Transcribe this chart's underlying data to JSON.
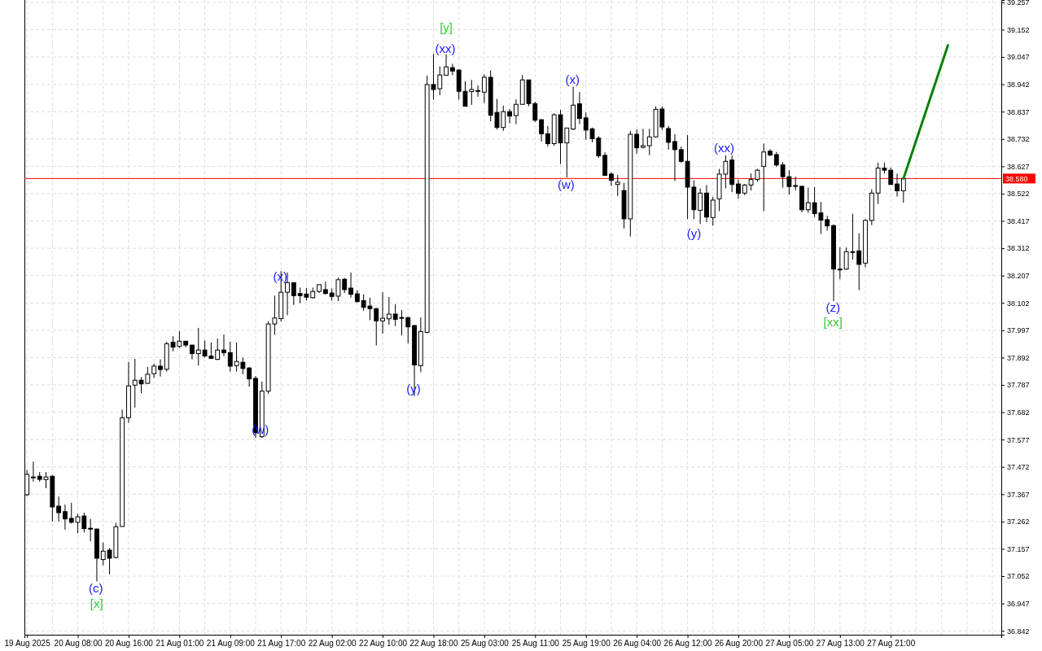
{
  "chart_data": {
    "type": "candlestick",
    "categories": [
      "19 Aug 2025",
      null,
      null,
      null,
      null,
      null,
      null,
      null,
      "20 Aug 08:00",
      null,
      null,
      null,
      null,
      null,
      null,
      null,
      "20 Aug 16:00",
      null,
      null,
      null,
      null,
      null,
      null,
      null,
      "21 Aug 01:00",
      null,
      null,
      null,
      null,
      null,
      null,
      null,
      "21 Aug 09:00",
      null,
      null,
      null,
      null,
      null,
      null,
      null,
      "21 Aug 17:00",
      null,
      null,
      null,
      null,
      null,
      null,
      null,
      "22 Aug 02:00",
      null,
      null,
      null,
      null,
      null,
      null,
      null,
      "22 Aug 10:00",
      null,
      null,
      null,
      null,
      null,
      null,
      null,
      "22 Aug 18:00",
      null,
      null,
      null,
      null,
      null,
      null,
      null,
      "25 Aug 03:00",
      null,
      null,
      null,
      null,
      null,
      null,
      null,
      "25 Aug 11:00",
      null,
      null,
      null,
      null,
      null,
      null,
      null,
      "25 Aug 19:00",
      null,
      null,
      null,
      null,
      null,
      null,
      null,
      "26 Aug 04:00",
      null,
      null,
      null,
      null,
      null,
      null,
      null,
      "26 Aug 12:00",
      null,
      null,
      null,
      null,
      null,
      null,
      null,
      "26 Aug 20:00",
      null,
      null,
      null,
      null,
      null,
      null,
      null,
      "27 Aug 05:00",
      null,
      null,
      null,
      null,
      null,
      null,
      null,
      "27 Aug 13:00",
      null,
      null,
      null,
      null,
      null,
      null,
      null,
      "27 Aug 21:00",
      null,
      null,
      null,
      null,
      null,
      null,
      null,
      null,
      null,
      null,
      null,
      null,
      null,
      null,
      null,
      null,
      null
    ],
    "ohlc": [
      [
        37.365,
        37.46,
        37.36,
        37.443
      ],
      [
        37.433,
        37.492,
        37.415,
        37.433
      ],
      [
        37.436,
        37.452,
        37.415,
        37.424
      ],
      [
        37.423,
        37.452,
        37.39,
        37.433
      ],
      [
        37.436,
        37.44,
        37.262,
        37.318
      ],
      [
        37.321,
        37.358,
        37.262,
        37.296
      ],
      [
        37.3,
        37.327,
        37.231,
        37.272
      ],
      [
        37.274,
        37.334,
        37.254,
        37.259
      ],
      [
        37.259,
        37.292,
        37.217,
        37.28
      ],
      [
        37.283,
        37.296,
        37.22,
        37.235
      ],
      [
        37.236,
        37.272,
        37.186,
        37.233
      ],
      [
        37.233,
        37.235,
        37.032,
        37.121
      ],
      [
        37.116,
        37.181,
        37.094,
        37.148
      ],
      [
        37.152,
        37.16,
        37.059,
        37.121
      ],
      [
        37.124,
        37.257,
        37.12,
        37.242
      ],
      [
        37.243,
        37.692,
        37.242,
        37.661
      ],
      [
        37.661,
        37.875,
        37.642,
        37.783
      ],
      [
        37.786,
        37.887,
        37.7,
        37.805
      ],
      [
        37.805,
        37.817,
        37.755,
        37.791
      ],
      [
        37.793,
        37.856,
        37.791,
        37.828
      ],
      [
        37.83,
        37.869,
        37.814,
        37.859
      ],
      [
        37.859,
        37.885,
        37.819,
        37.846
      ],
      [
        37.847,
        37.953,
        37.838,
        37.945
      ],
      [
        37.951,
        37.974,
        37.916,
        37.932
      ],
      [
        37.935,
        37.993,
        37.929,
        37.955
      ],
      [
        37.955,
        37.955,
        37.932,
        37.94
      ],
      [
        37.94,
        37.94,
        37.885,
        37.907
      ],
      [
        37.907,
        38.006,
        37.861,
        37.921
      ],
      [
        37.921,
        37.958,
        37.892,
        37.898
      ],
      [
        37.898,
        37.95,
        37.887,
        37.889
      ],
      [
        37.885,
        37.965,
        37.882,
        37.921
      ],
      [
        37.921,
        37.981,
        37.898,
        37.911
      ],
      [
        37.911,
        37.953,
        37.838,
        37.859
      ],
      [
        37.861,
        37.95,
        37.838,
        37.877
      ],
      [
        37.874,
        37.892,
        37.828,
        37.85
      ],
      [
        37.852,
        37.856,
        37.78,
        37.81
      ],
      [
        37.812,
        37.821,
        37.583,
        37.603
      ],
      [
        37.588,
        37.8,
        37.583,
        37.763
      ],
      [
        37.763,
        38.031,
        37.753,
        38.021
      ],
      [
        38.021,
        38.13,
        37.979,
        38.044
      ],
      [
        38.042,
        38.224,
        38.031,
        38.143
      ],
      [
        38.143,
        38.219,
        38.055,
        38.18
      ],
      [
        38.18,
        38.18,
        38.094,
        38.13
      ],
      [
        38.138,
        38.161,
        38.101,
        38.13
      ],
      [
        38.136,
        38.159,
        38.111,
        38.124
      ],
      [
        38.122,
        38.161,
        38.119,
        38.146
      ],
      [
        38.146,
        38.172,
        38.14,
        38.172
      ],
      [
        38.153,
        38.184,
        38.135,
        38.138
      ],
      [
        38.14,
        38.158,
        38.111,
        38.127
      ],
      [
        38.128,
        38.199,
        38.109,
        38.191
      ],
      [
        38.193,
        38.198,
        38.14,
        38.153
      ],
      [
        38.159,
        38.219,
        38.122,
        38.135
      ],
      [
        38.137,
        38.151,
        38.104,
        38.107
      ],
      [
        38.111,
        38.135,
        38.072,
        38.085
      ],
      [
        38.09,
        38.122,
        38.036,
        38.08
      ],
      [
        38.08,
        38.083,
        37.939,
        38.033
      ],
      [
        38.033,
        38.143,
        37.984,
        38.043
      ],
      [
        38.041,
        38.125,
        38.018,
        38.059
      ],
      [
        38.059,
        38.097,
        38.013,
        38.039
      ],
      [
        38.046,
        38.075,
        37.977,
        38.044
      ],
      [
        38.046,
        38.046,
        37.947,
        38.01
      ],
      [
        38.015,
        38.017,
        37.744,
        37.864
      ],
      [
        37.861,
        38.046,
        37.836,
        37.992
      ],
      [
        37.989,
        38.975,
        37.985,
        38.941
      ],
      [
        38.941,
        39.058,
        38.883,
        38.922
      ],
      [
        38.925,
        39.011,
        38.9,
        38.978
      ],
      [
        38.977,
        39.058,
        38.975,
        39.009
      ],
      [
        39.006,
        39.021,
        38.977,
        38.993
      ],
      [
        38.997,
        39.0,
        38.883,
        38.915
      ],
      [
        38.915,
        38.954,
        38.858,
        38.858
      ],
      [
        38.914,
        38.959,
        38.863,
        38.922
      ],
      [
        38.918,
        38.938,
        38.894,
        38.916
      ],
      [
        38.912,
        38.98,
        38.87,
        38.969
      ],
      [
        38.969,
        38.995,
        38.8,
        38.823
      ],
      [
        38.834,
        38.886,
        38.768,
        38.776
      ],
      [
        38.776,
        38.86,
        38.763,
        38.837
      ],
      [
        38.837,
        38.847,
        38.792,
        38.82
      ],
      [
        38.822,
        38.884,
        38.789,
        38.865
      ],
      [
        38.865,
        38.978,
        38.865,
        38.959
      ],
      [
        38.959,
        38.959,
        38.858,
        38.868
      ],
      [
        38.868,
        38.875,
        38.797,
        38.804
      ],
      [
        38.806,
        38.808,
        38.722,
        38.752
      ],
      [
        38.752,
        38.782,
        38.703,
        38.714
      ],
      [
        38.714,
        38.831,
        38.706,
        38.825
      ],
      [
        38.825,
        38.844,
        38.636,
        38.717
      ],
      [
        38.717,
        38.774,
        38.584,
        38.774
      ],
      [
        38.77,
        38.933,
        38.766,
        38.862
      ],
      [
        38.867,
        38.912,
        38.789,
        38.811
      ],
      [
        38.813,
        38.834,
        38.729,
        38.766
      ],
      [
        38.771,
        38.776,
        38.719,
        38.733
      ],
      [
        38.735,
        38.743,
        38.66,
        38.667
      ],
      [
        38.669,
        38.681,
        38.592,
        38.592
      ],
      [
        38.597,
        38.604,
        38.552,
        38.573
      ],
      [
        38.557,
        38.594,
        38.513,
        38.566
      ],
      [
        38.534,
        38.563,
        38.388,
        38.425
      ],
      [
        38.425,
        38.763,
        38.357,
        38.75
      ],
      [
        38.75,
        38.769,
        38.675,
        38.698
      ],
      [
        38.7,
        38.771,
        38.695,
        38.706
      ],
      [
        38.706,
        38.771,
        38.67,
        38.74
      ],
      [
        38.74,
        38.857,
        38.737,
        38.846
      ],
      [
        38.847,
        38.857,
        38.766,
        38.778
      ],
      [
        38.772,
        38.782,
        38.691,
        38.719
      ],
      [
        38.722,
        38.75,
        38.57,
        38.691
      ],
      [
        38.691,
        38.703,
        38.641,
        38.646
      ],
      [
        38.646,
        38.747,
        38.424,
        38.547
      ],
      [
        38.547,
        38.573,
        38.424,
        38.46
      ],
      [
        38.458,
        38.542,
        38.406,
        38.524
      ],
      [
        38.524,
        38.555,
        38.412,
        38.432
      ],
      [
        38.43,
        38.51,
        38.399,
        38.497
      ],
      [
        38.502,
        38.617,
        38.455,
        38.597
      ],
      [
        38.597,
        38.669,
        38.542,
        38.646
      ],
      [
        38.651,
        38.669,
        38.528,
        38.557
      ],
      [
        38.559,
        38.575,
        38.502,
        38.523
      ],
      [
        38.524,
        38.559,
        38.516,
        38.555
      ],
      [
        38.555,
        38.599,
        38.534,
        38.576
      ],
      [
        38.576,
        38.617,
        38.568,
        38.612
      ],
      [
        38.627,
        38.714,
        38.455,
        38.682
      ],
      [
        38.685,
        38.693,
        38.667,
        38.67
      ],
      [
        38.672,
        38.682,
        38.625,
        38.632
      ],
      [
        38.632,
        38.643,
        38.545,
        38.587
      ],
      [
        38.587,
        38.612,
        38.518,
        38.549
      ],
      [
        38.553,
        38.587,
        38.534,
        38.551
      ],
      [
        38.55,
        38.552,
        38.45,
        38.46
      ],
      [
        38.46,
        38.545,
        38.448,
        38.487
      ],
      [
        38.487,
        38.547,
        38.432,
        38.445
      ],
      [
        38.448,
        38.49,
        38.367,
        38.42
      ],
      [
        38.422,
        38.437,
        38.38,
        38.398
      ],
      [
        38.399,
        38.404,
        38.109,
        38.232
      ],
      [
        38.232,
        38.316,
        38.194,
        38.232
      ],
      [
        38.232,
        38.315,
        38.229,
        38.299
      ],
      [
        38.299,
        38.445,
        38.268,
        38.299
      ],
      [
        38.302,
        38.37,
        38.151,
        38.25
      ],
      [
        38.255,
        38.424,
        38.239,
        38.419
      ],
      [
        38.419,
        38.539,
        38.401,
        38.524
      ],
      [
        38.524,
        38.641,
        38.482,
        38.62
      ],
      [
        38.62,
        38.641,
        38.599,
        38.612
      ],
      [
        38.612,
        38.622,
        38.556,
        38.557
      ],
      [
        38.559,
        38.599,
        38.511,
        38.533
      ],
      [
        38.533,
        38.58,
        38.487,
        38.58
      ],
      null,
      null,
      null,
      null,
      null,
      null,
      null,
      null,
      null,
      null,
      null,
      null,
      null,
      null,
      null
    ],
    "series": [
      {
        "type": "line",
        "values": [
          null,
          null,
          null,
          null,
          null,
          null,
          null,
          null,
          null,
          null,
          null,
          null,
          null,
          null,
          null,
          null,
          null,
          null,
          null,
          null,
          null,
          null,
          null,
          null,
          null,
          null,
          null,
          null,
          null,
          null,
          null,
          null,
          null,
          null,
          null,
          null,
          null,
          null,
          null,
          null,
          null,
          null,
          null,
          null,
          null,
          null,
          null,
          null,
          null,
          null,
          null,
          null,
          null,
          null,
          null,
          null,
          null,
          null,
          null,
          null,
          null,
          null,
          null,
          null,
          null,
          null,
          null,
          null,
          null,
          null,
          null,
          null,
          null,
          null,
          null,
          null,
          null,
          null,
          null,
          null,
          null,
          null,
          null,
          null,
          null,
          null,
          null,
          null,
          null,
          null,
          null,
          null,
          null,
          null,
          null,
          null,
          null,
          null,
          null,
          null,
          null,
          null,
          null,
          null,
          null,
          null,
          null,
          null,
          null,
          null,
          null,
          null,
          null,
          null,
          null,
          null,
          null,
          null,
          null,
          null,
          null,
          null,
          null,
          null,
          null,
          null,
          null,
          null,
          null,
          null,
          null,
          null,
          null,
          null,
          null,
          null,
          null,
          null,
          38.58,
          null,
          null,
          null,
          null,
          null,
          null,
          39.092,
          null,
          null,
          null,
          null,
          null,
          null,
          null,
          null
        ],
        "color": "#008000"
      }
    ],
    "ylim": [
      36.827,
      39.266
    ],
    "yticks": [
      36.842,
      36.947,
      37.052,
      37.157,
      37.262,
      37.367,
      37.472,
      37.577,
      37.682,
      37.787,
      37.892,
      37.997,
      38.102,
      38.207,
      38.312,
      38.417,
      38.522,
      38.627,
      38.732,
      38.837,
      38.942,
      39.047,
      39.152,
      39.257
    ],
    "ref_lines": [
      {
        "axis": "y",
        "value": 38.58,
        "label": "38.580",
        "color": "#ff0000"
      }
    ],
    "annotations": [
      "(c)",
      "[x]",
      "(w)",
      "(x)",
      "(y)",
      "[y]",
      "(xx)",
      "(x)",
      "(w)",
      "(y)",
      "(xx)",
      "(z)",
      "[xx]"
    ],
    "grid": true
  }
}
